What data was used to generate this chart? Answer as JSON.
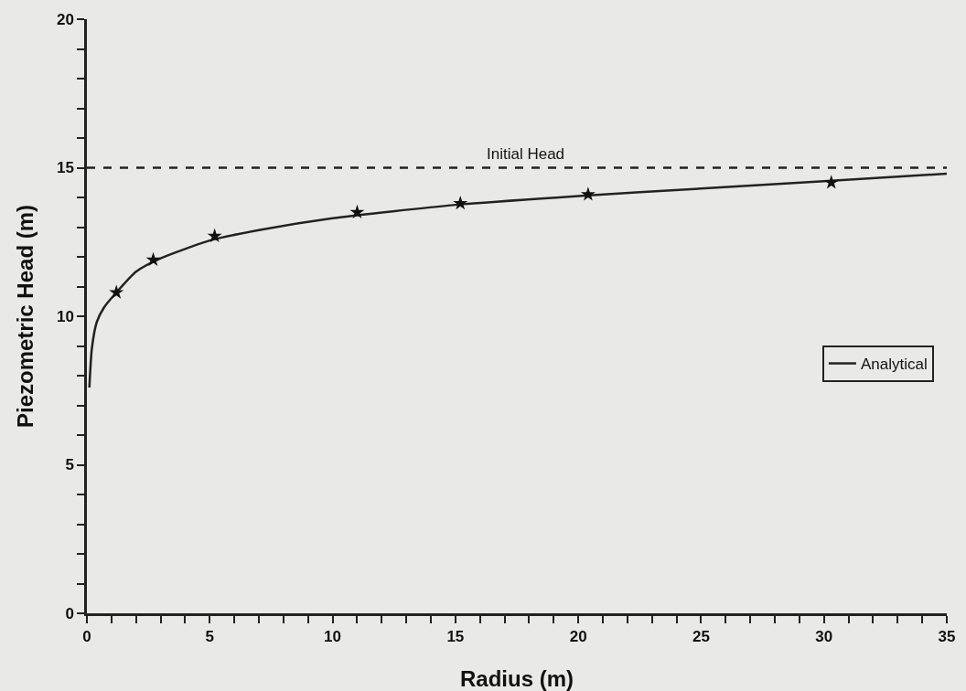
{
  "chart_data": {
    "type": "line",
    "xlabel": "Radius (m)",
    "ylabel": "Piezometric Head (m)",
    "xlim": [
      0,
      35
    ],
    "ylim": [
      0,
      20
    ],
    "xticks": [
      0,
      {
        "value": 1,
        "label": null
      },
      {
        "value": 2,
        "label": null
      },
      {
        "value": 3,
        "label": null
      },
      {
        "value": 4,
        "label": null
      },
      5,
      {
        "value": 6,
        "label": null
      },
      {
        "value": 7,
        "label": null
      },
      {
        "value": 8,
        "label": null
      },
      {
        "value": 9,
        "label": null
      },
      10,
      {
        "value": 11,
        "label": null
      },
      {
        "value": 12,
        "label": null
      },
      {
        "value": 13,
        "label": null
      },
      {
        "value": 14,
        "label": null
      },
      15,
      {
        "value": 16,
        "label": null
      },
      {
        "value": 17,
        "label": null
      },
      {
        "value": 18,
        "label": null
      },
      {
        "value": 19,
        "label": null
      },
      20,
      {
        "value": 21,
        "label": null
      },
      {
        "value": 22,
        "label": null
      },
      {
        "value": 23,
        "label": null
      },
      {
        "value": 24,
        "label": null
      },
      25,
      {
        "value": 26,
        "label": null
      },
      {
        "value": 27,
        "label": null
      },
      {
        "value": 28,
        "label": null
      },
      {
        "value": 29,
        "label": null
      },
      30,
      {
        "value": 31,
        "label": null
      },
      {
        "value": 32,
        "label": null
      },
      {
        "value": 33,
        "label": null
      },
      {
        "value": 34,
        "label": null
      },
      35
    ],
    "yticks": [
      0,
      {
        "value": 1,
        "label": null
      },
      {
        "value": 2,
        "label": null
      },
      {
        "value": 3,
        "label": null
      },
      {
        "value": 4,
        "label": null
      },
      5,
      {
        "value": 6,
        "label": null
      },
      {
        "value": 7,
        "label": null
      },
      {
        "value": 8,
        "label": null
      },
      {
        "value": 9,
        "label": null
      },
      10,
      {
        "value": 11,
        "label": null
      },
      {
        "value": 12,
        "label": null
      },
      {
        "value": 13,
        "label": null
      },
      {
        "value": 14,
        "label": null
      },
      15,
      {
        "value": 16,
        "label": null
      },
      {
        "value": 17,
        "label": null
      },
      {
        "value": 18,
        "label": null
      },
      {
        "value": 19,
        "label": null
      },
      20
    ],
    "series": [
      {
        "type": "scatter",
        "color": "#111111",
        "marker": "star",
        "x": [
          1.2,
          2.7,
          5.2,
          11.0,
          15.2,
          20.4,
          30.3
        ],
        "values": [
          10.8,
          11.9,
          12.7,
          13.5,
          13.8,
          14.1,
          14.5
        ]
      },
      {
        "type": "line",
        "name": "Analytical",
        "color": "#222222",
        "line_style": "solid",
        "x": [
          0.1,
          0.2,
          0.4,
          0.7,
          1.2,
          2,
          3,
          5,
          7,
          10,
          15,
          20,
          25,
          30,
          35
        ],
        "values": [
          7.6,
          8.9,
          9.8,
          10.3,
          10.8,
          11.5,
          11.95,
          12.55,
          12.9,
          13.3,
          13.75,
          14.05,
          14.3,
          14.55,
          14.8
        ]
      }
    ],
    "ref_lines": [
      {
        "axis": "y",
        "value": 15,
        "label": "Initial Head",
        "color": "#222222",
        "line_style": "dashed"
      }
    ],
    "legend": "right",
    "grid": false
  }
}
